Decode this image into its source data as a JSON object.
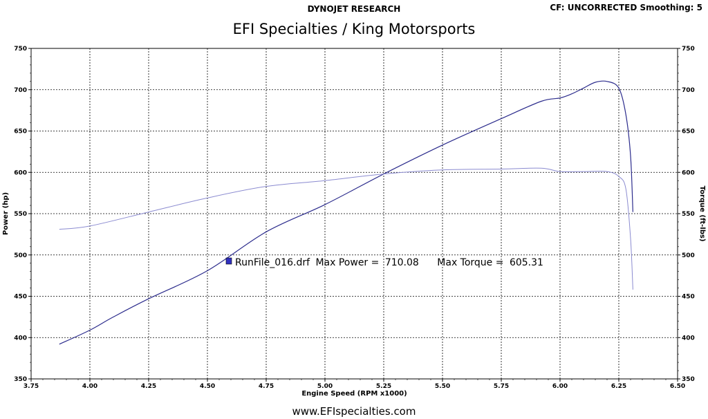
{
  "header": {
    "left": "DYNOJET RESEARCH",
    "right": "CF: UNCORRECTED  Smoothing: 5"
  },
  "footer": {
    "url": "www.EFIspecialties.com"
  },
  "colors": {
    "power": "#2b2b8c",
    "torque": "#8a8ad0",
    "grid": "#000000",
    "legend_swatch": "#3030c0"
  },
  "chart_data": {
    "type": "line",
    "title": "EFI Specialties / King Motorsports",
    "xlabel": "Engine Speed (RPM x1000)",
    "ylabel": "Power (hp)",
    "y2label": "Torque (ft-lbs)",
    "xlim": [
      3.75,
      6.5
    ],
    "ylim": [
      350,
      750
    ],
    "y2lim": [
      350,
      750
    ],
    "x_ticks": [
      "3.75",
      "4.00",
      "4.25",
      "4.50",
      "4.75",
      "5.00",
      "5.25",
      "5.50",
      "5.75",
      "6.00",
      "6.25",
      "6.50"
    ],
    "y_ticks": [
      "350",
      "400",
      "450",
      "500",
      "550",
      "600",
      "650",
      "700",
      "750"
    ],
    "grid": true,
    "legend": {
      "run_file": "RunFile_016.drf",
      "max_power_label": "Max Power =",
      "max_power": "710.08",
      "max_torque_label": "Max Torque =",
      "max_torque": "605.31"
    },
    "series": [
      {
        "name": "Power",
        "axis": "left",
        "x": [
          3.87,
          4.0,
          4.1,
          4.25,
          4.5,
          4.75,
          5.0,
          5.25,
          5.5,
          5.75,
          5.92,
          6.0,
          6.05,
          6.1,
          6.15,
          6.2,
          6.25,
          6.28,
          6.3,
          6.31
        ],
        "y": [
          392,
          409,
          425,
          447,
          481,
          528,
          561,
          598,
          633,
          665,
          686,
          690,
          695,
          702,
          709,
          710,
          702,
          670,
          620,
          552
        ]
      },
      {
        "name": "Torque",
        "axis": "right",
        "x": [
          3.87,
          4.0,
          4.25,
          4.5,
          4.75,
          5.0,
          5.25,
          5.5,
          5.75,
          5.92,
          6.0,
          6.1,
          6.2,
          6.25,
          6.28,
          6.3,
          6.31
        ],
        "y": [
          531,
          535,
          552,
          569,
          583,
          590,
          598,
          603,
          604,
          605,
          601,
          601,
          601,
          595,
          580,
          520,
          458
        ]
      }
    ]
  }
}
